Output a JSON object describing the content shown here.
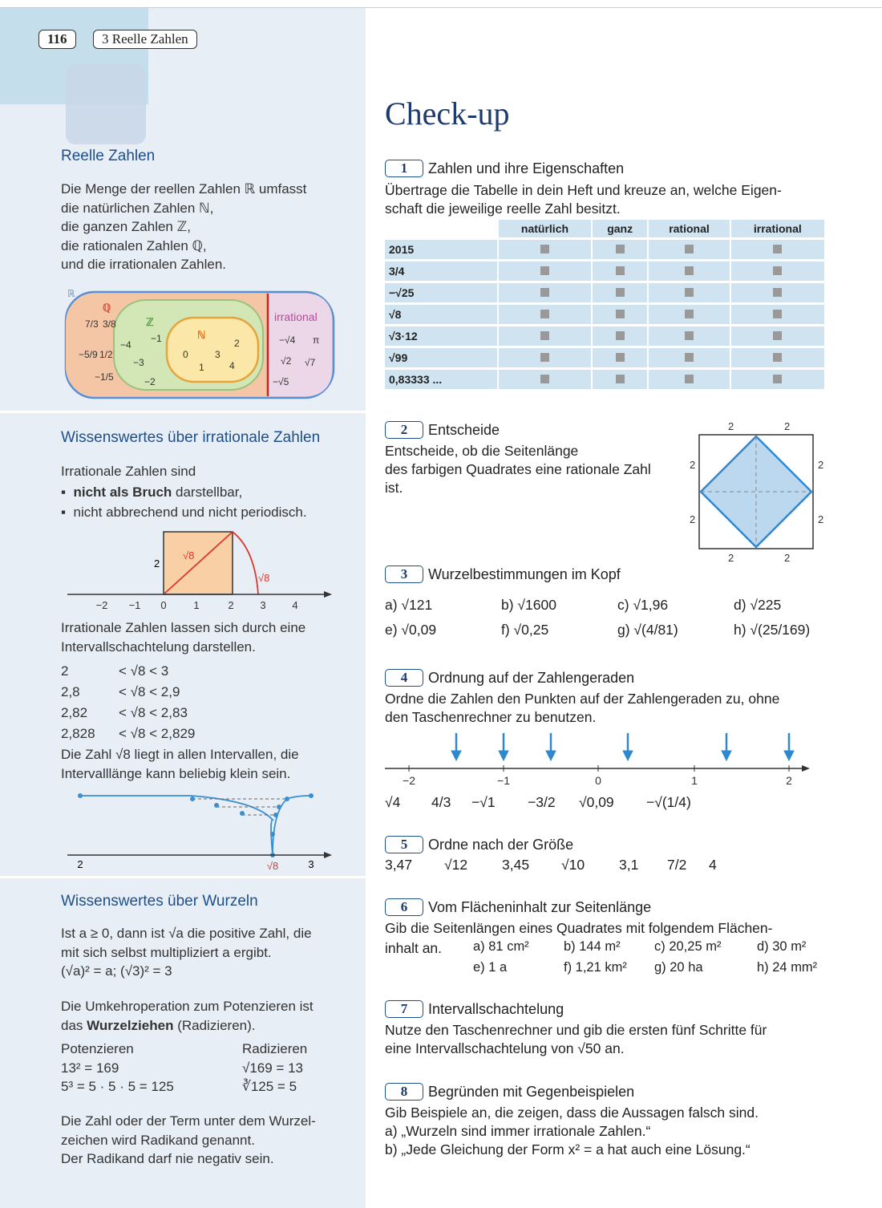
{
  "header": {
    "page_number": "116",
    "chapter": "3 Reelle Zahlen"
  },
  "sidebar": {
    "reelle": {
      "title": "Reelle Zahlen",
      "lines": [
        "Die Menge der reellen Zahlen ℝ umfasst",
        "die natürlichen Zahlen ℕ,",
        "die ganzen Zahlen ℤ,",
        "die rationalen Zahlen ℚ,",
        "und die irrationalen Zahlen."
      ],
      "diagram": {
        "r": "ℝ",
        "q": "ℚ",
        "z": "ℤ",
        "n": "ℕ",
        "irr": "irrational",
        "q_items": [
          "7/3",
          "3/8",
          "−5/9",
          "1/2",
          "−1/5"
        ],
        "z_items": [
          "−4",
          "−1",
          "−3",
          "−2"
        ],
        "n_items": [
          "0",
          "1",
          "2",
          "3",
          "4"
        ],
        "irr_items": [
          "−√4",
          "π",
          "√2",
          "√7",
          "−√5"
        ]
      }
    },
    "irrational": {
      "title": "Wissenswertes über irrationale Zahlen",
      "intro": "Irrationale Zahlen sind",
      "b1_bold": "nicht als Bruch",
      "b1_rest": " darstellbar,",
      "b2": "nicht abbrechend und nicht periodisch.",
      "numberline1": {
        "ticks": [
          "−2",
          "−1",
          "0",
          "1",
          "2",
          "3",
          "4"
        ],
        "side": "2",
        "diag": "√8",
        "arc": "√8"
      },
      "nested_text1": "Irrationale Zahlen lassen sich durch eine",
      "nested_text2": "Intervallschachtelung darstellen.",
      "intervals": [
        [
          "2",
          "< √8 < 3"
        ],
        [
          "2,8",
          "< √8 < 2,9"
        ],
        [
          "2,82",
          "< √8 < 2,83"
        ],
        [
          "2,828",
          "< √8 < 2,829"
        ]
      ],
      "conclusion1": "Die Zahl √8 liegt in allen Intervallen, die",
      "conclusion2": "Intervalllänge kann beliebig klein sein.",
      "numberline2": {
        "left": "2",
        "mid": "√8",
        "right": "3"
      }
    },
    "wurzeln": {
      "title": "Wissenswertes über Wurzeln",
      "l1": "Ist a ≥ 0, dann ist √a die positive Zahl, die",
      "l2": "mit sich selbst multipliziert a ergibt.",
      "l3": "(√a)² = a;   (√3)² = 3",
      "l4": "Die Umkehroperation zum Potenzieren ist",
      "l5_a": "das ",
      "l5_bold": "Wurzelziehen",
      "l5_b": " (Radizieren).",
      "col1_head": "Potenzieren",
      "col2_head": "Radizieren",
      "col1_r1": "13² = 169",
      "col2_r1": "√169 = 13",
      "col1_r2": "5³ = 5 · 5 · 5 = 125",
      "col2_r2": "∛125 = 5",
      "l6": "Die Zahl oder der Term unter dem Wurzel-",
      "l7": "zeichen wird Radikand genannt.",
      "l8": "Der Radikand darf nie negativ sein."
    }
  },
  "main": {
    "title": "Check-up",
    "t1": {
      "num": "1",
      "title": "Zahlen und ihre Eigenschaften",
      "text1": "Übertrage die Tabelle in dein Heft und kreuze an, welche Eigen-",
      "text2": "schaft die jeweilige reelle Zahl besitzt.",
      "headers": [
        "natürlich",
        "ganz",
        "rational",
        "irrational"
      ],
      "rows": [
        "2015",
        "3/4",
        "−√25",
        "√8",
        "√3·12",
        "√99",
        "0,83333 ..."
      ]
    },
    "t2": {
      "num": "2",
      "title": "Entscheide",
      "l1": "Entscheide, ob die Seitenlänge",
      "l2": "des farbigen Quadrates eine rationale Zahl",
      "l3": "ist.",
      "label": "2"
    },
    "t3": {
      "num": "3",
      "title": "Wurzelbestimmungen im Kopf",
      "items": [
        "a) √121",
        "b) √1600",
        "c) √1,96",
        "d) √225",
        "e) √0,09",
        "f) √0,25",
        "g) √(4/81)",
        "h) √(25/169)"
      ]
    },
    "t4": {
      "num": "4",
      "title": "Ordnung auf der Zahlengeraden",
      "l1": "Ordne die Zahlen den Punkten auf der Zahlengeraden zu, ohne",
      "l2": "den Taschenrechner zu benutzen.",
      "ticks": [
        "−2",
        "−1",
        "0",
        "1",
        "2"
      ],
      "values": [
        "√4",
        "4/3",
        "−√1",
        "−3/2",
        "√0,09",
        "−√(1/4)"
      ]
    },
    "t5": {
      "num": "5",
      "title": "Ordne nach der Größe",
      "values": [
        "3,47",
        "√12",
        "3,45",
        "√10",
        "3,1",
        "7/2",
        "4"
      ]
    },
    "t6": {
      "num": "6",
      "title": "Vom Flächeninhalt zur Seitenlänge",
      "l1": "Gib die Seitenlängen eines Quadrates mit folgendem Flächen-",
      "l2": "inhalt an.",
      "items": [
        "a) 81 cm²",
        "b) 144 m²",
        "c) 20,25 m²",
        "d) 30 m²",
        "e) 1 a",
        "f) 1,21 km²",
        "g) 20 ha",
        "h) 24 mm²"
      ]
    },
    "t7": {
      "num": "7",
      "title": "Intervallschachtelung",
      "l1": "Nutze den Taschenrechner und gib die ersten fünf Schritte für",
      "l2": "eine Intervallschachtelung von √50 an."
    },
    "t8": {
      "num": "8",
      "title": "Begründen mit Gegenbeispielen",
      "l1": "Gib Beispiele an, die zeigen, dass die Aussagen falsch sind.",
      "l2": "a)  „Wurzeln sind immer irrationale Zahlen.“",
      "l3": "b)  „Jede Gleichung der Form  x² = a  hat auch eine Lösung.“"
    }
  }
}
